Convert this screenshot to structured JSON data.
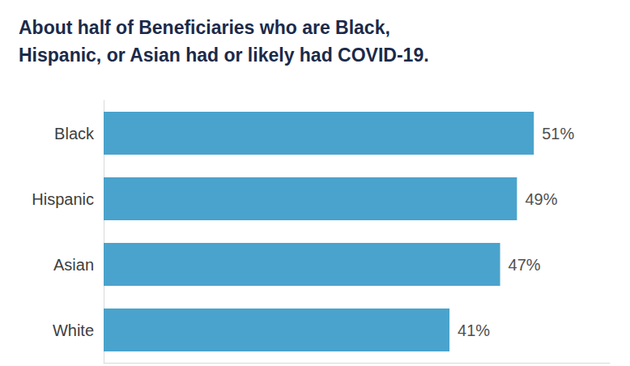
{
  "chart_data": {
    "type": "bar",
    "orientation": "horizontal",
    "title": "About half of Beneficiaries who are Black, Hispanic, or Asian had or likely had COVID-19.",
    "categories": [
      "Black",
      "Hispanic",
      "Asian",
      "White"
    ],
    "values": [
      51,
      49,
      47,
      41
    ],
    "value_labels": [
      "51%",
      "49%",
      "47%",
      "41%"
    ],
    "color": "#4aa3cc",
    "xlim": [
      0,
      60
    ],
    "grid": false,
    "data_labels": true,
    "tick_labels": "y"
  }
}
